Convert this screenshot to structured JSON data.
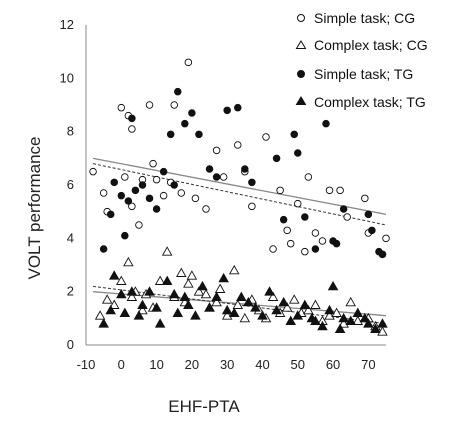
{
  "chart_data": {
    "type": "scatter",
    "title": "",
    "xlabel": "EHF-PTA",
    "ylabel": "VOLT performance",
    "xlim": [
      -10,
      75
    ],
    "ylim": [
      0,
      12
    ],
    "x_ticks": [
      "-10",
      "0",
      "10",
      "20",
      "30",
      "40",
      "50",
      "60",
      "70"
    ],
    "y_ticks": [
      "0",
      "2",
      "4",
      "6",
      "8",
      "10",
      "12"
    ],
    "grid": false,
    "legend_position": "top-right",
    "series": [
      {
        "name": "Simple task; CG",
        "marker": "open-circle",
        "points": [
          [
            -8,
            6.5
          ],
          [
            -5,
            5.7
          ],
          [
            -4,
            5.0
          ],
          [
            0,
            8.9
          ],
          [
            1,
            6.3
          ],
          [
            2,
            8.6
          ],
          [
            3,
            8.1
          ],
          [
            3,
            5.2
          ],
          [
            5,
            4.5
          ],
          [
            6,
            6.2
          ],
          [
            8,
            9.0
          ],
          [
            9,
            6.8
          ],
          [
            10,
            6.2
          ],
          [
            12,
            5.6
          ],
          [
            14,
            6.1
          ],
          [
            15,
            9.0
          ],
          [
            17,
            5.7
          ],
          [
            19,
            10.6
          ],
          [
            21,
            5.5
          ],
          [
            24,
            5.1
          ],
          [
            27,
            7.3
          ],
          [
            29,
            6.3
          ],
          [
            33,
            7.5
          ],
          [
            35,
            6.5
          ],
          [
            37,
            5.2
          ],
          [
            41,
            7.8
          ],
          [
            43,
            3.6
          ],
          [
            45,
            5.8
          ],
          [
            47,
            4.3
          ],
          [
            48,
            3.8
          ],
          [
            50,
            5.3
          ],
          [
            52,
            3.5
          ],
          [
            53,
            6.3
          ],
          [
            55,
            4.2
          ],
          [
            57,
            3.9
          ],
          [
            59,
            5.8
          ],
          [
            62,
            5.8
          ],
          [
            64,
            4.8
          ],
          [
            69,
            5.5
          ],
          [
            70,
            4.2
          ],
          [
            74,
            3.4
          ],
          [
            75,
            4.0
          ]
        ]
      },
      {
        "name": "Complex task; CG",
        "marker": "open-triangle",
        "points": [
          [
            -6,
            1.1
          ],
          [
            -4,
            1.7
          ],
          [
            -2,
            1.5
          ],
          [
            0,
            2.4
          ],
          [
            2,
            3.1
          ],
          [
            3,
            1.8
          ],
          [
            4,
            2.0
          ],
          [
            6,
            1.3
          ],
          [
            7,
            1.9
          ],
          [
            9,
            1.4
          ],
          [
            11,
            2.4
          ],
          [
            13,
            3.5
          ],
          [
            15,
            1.8
          ],
          [
            17,
            2.7
          ],
          [
            18,
            1.6
          ],
          [
            19,
            2.3
          ],
          [
            20,
            2.6
          ],
          [
            22,
            2.0
          ],
          [
            24,
            1.9
          ],
          [
            25,
            1.4
          ],
          [
            27,
            1.6
          ],
          [
            28,
            2.1
          ],
          [
            30,
            1.1
          ],
          [
            32,
            2.8
          ],
          [
            33,
            1.5
          ],
          [
            35,
            1.0
          ],
          [
            37,
            1.7
          ],
          [
            39,
            1.3
          ],
          [
            41,
            1.0
          ],
          [
            43,
            1.8
          ],
          [
            45,
            1.2
          ],
          [
            47,
            1.4
          ],
          [
            49,
            1.7
          ],
          [
            51,
            1.2
          ],
          [
            53,
            1.3
          ],
          [
            55,
            1.5
          ],
          [
            57,
            0.9
          ],
          [
            59,
            1.1
          ],
          [
            61,
            1.2
          ],
          [
            63,
            0.8
          ],
          [
            65,
            1.6
          ],
          [
            67,
            0.9
          ],
          [
            70,
            1.0
          ],
          [
            72,
            0.7
          ],
          [
            74,
            0.5
          ]
        ]
      },
      {
        "name": "Simple task; TG",
        "marker": "filled-circle",
        "points": [
          [
            -5,
            3.6
          ],
          [
            -3,
            4.9
          ],
          [
            -2,
            6.1
          ],
          [
            0,
            5.6
          ],
          [
            1,
            4.1
          ],
          [
            2,
            5.4
          ],
          [
            3,
            8.5
          ],
          [
            4,
            5.8
          ],
          [
            6,
            6.0
          ],
          [
            8,
            5.5
          ],
          [
            10,
            5.1
          ],
          [
            12,
            6.5
          ],
          [
            14,
            7.9
          ],
          [
            15,
            6.0
          ],
          [
            16,
            9.5
          ],
          [
            18,
            8.3
          ],
          [
            20,
            8.7
          ],
          [
            22,
            7.9
          ],
          [
            25,
            6.6
          ],
          [
            27,
            6.3
          ],
          [
            30,
            8.8
          ],
          [
            33,
            8.9
          ],
          [
            35,
            6.6
          ],
          [
            37,
            6.1
          ],
          [
            44,
            7.0
          ],
          [
            46,
            4.7
          ],
          [
            49,
            7.9
          ],
          [
            50,
            7.2
          ],
          [
            52,
            4.8
          ],
          [
            55,
            3.6
          ],
          [
            58,
            8.3
          ],
          [
            60,
            3.9
          ],
          [
            61,
            3.8
          ],
          [
            63,
            5.1
          ],
          [
            70,
            4.9
          ],
          [
            71,
            4.3
          ],
          [
            73,
            3.5
          ],
          [
            74,
            3.4
          ]
        ]
      },
      {
        "name": "Complex task; TG",
        "marker": "filled-triangle",
        "points": [
          [
            -5,
            0.8
          ],
          [
            -3,
            1.3
          ],
          [
            -2,
            2.6
          ],
          [
            0,
            1.9
          ],
          [
            1,
            1.2
          ],
          [
            3,
            2.0
          ],
          [
            5,
            1.1
          ],
          [
            6,
            1.5
          ],
          [
            8,
            2.0
          ],
          [
            10,
            1.4
          ],
          [
            11,
            0.8
          ],
          [
            13,
            2.4
          ],
          [
            15,
            1.9
          ],
          [
            16,
            1.2
          ],
          [
            18,
            1.8
          ],
          [
            19,
            1.5
          ],
          [
            21,
            1.1
          ],
          [
            23,
            2.2
          ],
          [
            25,
            1.4
          ],
          [
            27,
            1.8
          ],
          [
            29,
            2.5
          ],
          [
            30,
            1.3
          ],
          [
            32,
            1.2
          ],
          [
            34,
            1.8
          ],
          [
            36,
            1.6
          ],
          [
            38,
            1.4
          ],
          [
            40,
            1.1
          ],
          [
            42,
            2.0
          ],
          [
            44,
            1.3
          ],
          [
            46,
            1.6
          ],
          [
            48,
            0.9
          ],
          [
            50,
            1.1
          ],
          [
            52,
            1.5
          ],
          [
            54,
            1.0
          ],
          [
            55,
            0.9
          ],
          [
            57,
            0.7
          ],
          [
            59,
            1.3
          ],
          [
            60,
            2.2
          ],
          [
            62,
            0.6
          ],
          [
            63,
            1.0
          ],
          [
            65,
            0.9
          ],
          [
            67,
            1.2
          ],
          [
            69,
            1.0
          ],
          [
            70,
            0.8
          ],
          [
            72,
            0.6
          ],
          [
            74,
            0.8
          ]
        ]
      }
    ],
    "trendlines": [
      {
        "group": "Simple task, solid",
        "style": "solid",
        "x": [
          -8,
          75
        ],
        "y": [
          7.0,
          4.9
        ]
      },
      {
        "group": "Simple task, dashed",
        "style": "dashed",
        "x": [
          -8,
          75
        ],
        "y": [
          6.8,
          4.5
        ]
      },
      {
        "group": "Complex task, solid",
        "style": "solid",
        "x": [
          -8,
          75
        ],
        "y": [
          2.0,
          1.1
        ]
      },
      {
        "group": "Complex task, dashed",
        "style": "dashed",
        "x": [
          -8,
          75
        ],
        "y": [
          2.2,
          0.8
        ]
      }
    ]
  }
}
